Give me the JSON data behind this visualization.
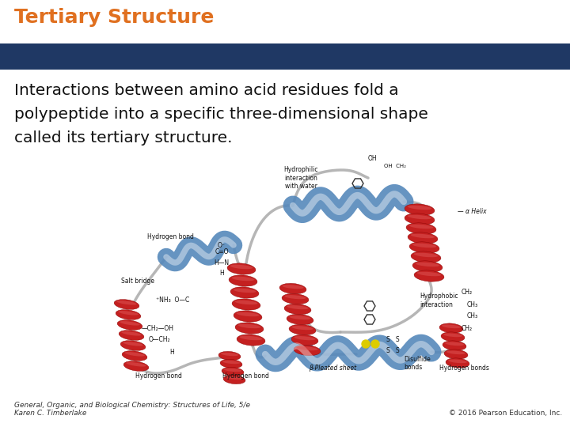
{
  "title": "Tertiary Structure",
  "title_color": "#E07020",
  "title_fontsize": 18,
  "title_bold": true,
  "header_bar_color": "#1F3864",
  "bg_color": "#FFFFFF",
  "body_text_lines": [
    "Interactions between amino acid residues fold a",
    "polypeptide into a specific three-dimensional shape",
    "called its tertiary structure."
  ],
  "body_text_color": "#111111",
  "body_text_fontsize": 14.5,
  "footer_left": "General, Organic, and Biological Chemistry: Structures of Life, 5/e\nKaren C. Timberlake",
  "footer_right": "© 2016 Pearson Education, Inc.",
  "footer_fontsize": 6.5,
  "footer_color": "#333333",
  "red_color": "#C42020",
  "blue_color": "#5588BB",
  "loop_color": "#AAAAAA",
  "label_fontsize": 5.5,
  "label_color": "#111111"
}
